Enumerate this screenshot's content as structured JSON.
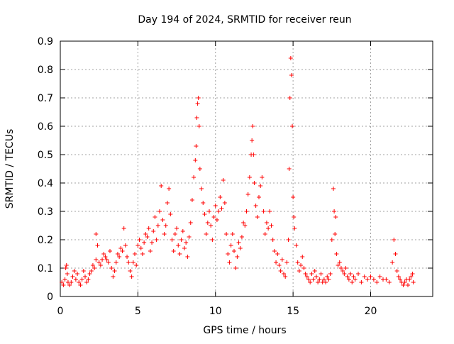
{
  "chart_data": {
    "type": "scatter",
    "title": "Day 194 of 2024, SRMTID for receiver reun",
    "xlabel": "GPS time / hours",
    "ylabel": "SRMTID / TECUs",
    "xlim": [
      0,
      24
    ],
    "ylim": [
      0,
      0.9
    ],
    "x_ticks": [
      0,
      5,
      10,
      15,
      20
    ],
    "x_tick_labels": [
      "0",
      "5",
      "10",
      "15",
      "20"
    ],
    "y_ticks": [
      0,
      0.1,
      0.2,
      0.3,
      0.4,
      0.5,
      0.6,
      0.7,
      0.8,
      0.9
    ],
    "y_tick_labels": [
      "0",
      "0.1",
      "0.2",
      "0.3",
      "0.4",
      "0.5",
      "0.6",
      "0.7",
      "0.8",
      "0.9"
    ],
    "grid": true,
    "marker": "+",
    "color": "#ff0000",
    "series": [
      {
        "name": "SRMTID",
        "points": [
          [
            0.1,
            0.05
          ],
          [
            0.2,
            0.04
          ],
          [
            0.3,
            0.06
          ],
          [
            0.35,
            0.1
          ],
          [
            0.4,
            0.11
          ],
          [
            0.45,
            0.08
          ],
          [
            0.5,
            0.05
          ],
          [
            0.6,
            0.04
          ],
          [
            0.7,
            0.05
          ],
          [
            0.8,
            0.07
          ],
          [
            0.9,
            0.09
          ],
          [
            1.0,
            0.06
          ],
          [
            1.1,
            0.08
          ],
          [
            1.2,
            0.05
          ],
          [
            1.3,
            0.04
          ],
          [
            1.4,
            0.06
          ],
          [
            1.5,
            0.09
          ],
          [
            1.6,
            0.07
          ],
          [
            1.7,
            0.05
          ],
          [
            1.8,
            0.06
          ],
          [
            1.9,
            0.08
          ],
          [
            2.0,
            0.09
          ],
          [
            2.1,
            0.11
          ],
          [
            2.2,
            0.1
          ],
          [
            2.3,
            0.13
          ],
          [
            2.3,
            0.22
          ],
          [
            2.4,
            0.18
          ],
          [
            2.5,
            0.12
          ],
          [
            2.6,
            0.11
          ],
          [
            2.7,
            0.13
          ],
          [
            2.8,
            0.15
          ],
          [
            2.9,
            0.14
          ],
          [
            3.0,
            0.13
          ],
          [
            3.1,
            0.12
          ],
          [
            3.2,
            0.16
          ],
          [
            3.3,
            0.1
          ],
          [
            3.4,
            0.07
          ],
          [
            3.5,
            0.09
          ],
          [
            3.6,
            0.12
          ],
          [
            3.7,
            0.15
          ],
          [
            3.8,
            0.14
          ],
          [
            3.9,
            0.17
          ],
          [
            4.0,
            0.16
          ],
          [
            4.1,
            0.24
          ],
          [
            4.2,
            0.18
          ],
          [
            4.3,
            0.14
          ],
          [
            4.4,
            0.12
          ],
          [
            4.5,
            0.09
          ],
          [
            4.6,
            0.07
          ],
          [
            4.7,
            0.12
          ],
          [
            4.8,
            0.15
          ],
          [
            4.9,
            0.11
          ],
          [
            5.0,
            0.18
          ],
          [
            5.1,
            0.2
          ],
          [
            5.2,
            0.17
          ],
          [
            5.3,
            0.15
          ],
          [
            5.4,
            0.19
          ],
          [
            5.5,
            0.22
          ],
          [
            5.6,
            0.21
          ],
          [
            5.7,
            0.24
          ],
          [
            5.8,
            0.16
          ],
          [
            5.9,
            0.19
          ],
          [
            6.0,
            0.23
          ],
          [
            6.1,
            0.28
          ],
          [
            6.2,
            0.2
          ],
          [
            6.3,
            0.25
          ],
          [
            6.4,
            0.3
          ],
          [
            6.5,
            0.39
          ],
          [
            6.6,
            0.27
          ],
          [
            6.7,
            0.22
          ],
          [
            6.8,
            0.25
          ],
          [
            6.9,
            0.33
          ],
          [
            7.0,
            0.38
          ],
          [
            7.1,
            0.29
          ],
          [
            7.2,
            0.2
          ],
          [
            7.3,
            0.16
          ],
          [
            7.4,
            0.22
          ],
          [
            7.5,
            0.24
          ],
          [
            7.6,
            0.18
          ],
          [
            7.7,
            0.15
          ],
          [
            7.8,
            0.2
          ],
          [
            7.9,
            0.23
          ],
          [
            8.0,
            0.17
          ],
          [
            8.1,
            0.19
          ],
          [
            8.2,
            0.14
          ],
          [
            8.3,
            0.21
          ],
          [
            8.4,
            0.26
          ],
          [
            8.5,
            0.34
          ],
          [
            8.6,
            0.42
          ],
          [
            8.7,
            0.48
          ],
          [
            8.75,
            0.53
          ],
          [
            8.8,
            0.63
          ],
          [
            8.85,
            0.68
          ],
          [
            8.9,
            0.7
          ],
          [
            8.95,
            0.6
          ],
          [
            9.0,
            0.45
          ],
          [
            9.1,
            0.38
          ],
          [
            9.2,
            0.33
          ],
          [
            9.3,
            0.29
          ],
          [
            9.4,
            0.22
          ],
          [
            9.5,
            0.26
          ],
          [
            9.6,
            0.3
          ],
          [
            9.7,
            0.25
          ],
          [
            9.8,
            0.2
          ],
          [
            9.9,
            0.28
          ],
          [
            10.0,
            0.32
          ],
          [
            10.1,
            0.27
          ],
          [
            10.2,
            0.3
          ],
          [
            10.3,
            0.35
          ],
          [
            10.4,
            0.31
          ],
          [
            10.5,
            0.41
          ],
          [
            10.6,
            0.33
          ],
          [
            10.7,
            0.22
          ],
          [
            10.8,
            0.15
          ],
          [
            10.9,
            0.12
          ],
          [
            11.0,
            0.18
          ],
          [
            11.1,
            0.22
          ],
          [
            11.2,
            0.16
          ],
          [
            11.3,
            0.1
          ],
          [
            11.4,
            0.14
          ],
          [
            11.5,
            0.19
          ],
          [
            11.6,
            0.17
          ],
          [
            11.7,
            0.21
          ],
          [
            11.8,
            0.26
          ],
          [
            11.9,
            0.25
          ],
          [
            12.0,
            0.3
          ],
          [
            12.1,
            0.36
          ],
          [
            12.2,
            0.42
          ],
          [
            12.3,
            0.5
          ],
          [
            12.35,
            0.55
          ],
          [
            12.4,
            0.6
          ],
          [
            12.45,
            0.5
          ],
          [
            12.5,
            0.4
          ],
          [
            12.6,
            0.32
          ],
          [
            12.7,
            0.28
          ],
          [
            12.8,
            0.35
          ],
          [
            12.9,
            0.39
          ],
          [
            13.0,
            0.42
          ],
          [
            13.1,
            0.3
          ],
          [
            13.2,
            0.22
          ],
          [
            13.3,
            0.26
          ],
          [
            13.4,
            0.24
          ],
          [
            13.5,
            0.3
          ],
          [
            13.6,
            0.25
          ],
          [
            13.7,
            0.2
          ],
          [
            13.8,
            0.16
          ],
          [
            13.9,
            0.12
          ],
          [
            14.0,
            0.15
          ],
          [
            14.1,
            0.11
          ],
          [
            14.2,
            0.09
          ],
          [
            14.3,
            0.13
          ],
          [
            14.4,
            0.08
          ],
          [
            14.5,
            0.07
          ],
          [
            14.6,
            0.12
          ],
          [
            14.7,
            0.2
          ],
          [
            14.75,
            0.45
          ],
          [
            14.8,
            0.7
          ],
          [
            14.85,
            0.84
          ],
          [
            14.9,
            0.78
          ],
          [
            14.95,
            0.6
          ],
          [
            15.0,
            0.35
          ],
          [
            15.05,
            0.28
          ],
          [
            15.1,
            0.24
          ],
          [
            15.2,
            0.18
          ],
          [
            15.3,
            0.12
          ],
          [
            15.4,
            0.09
          ],
          [
            15.5,
            0.11
          ],
          [
            15.6,
            0.14
          ],
          [
            15.7,
            0.1
          ],
          [
            15.8,
            0.08
          ],
          [
            15.9,
            0.07
          ],
          [
            16.0,
            0.06
          ],
          [
            16.1,
            0.05
          ],
          [
            16.2,
            0.08
          ],
          [
            16.3,
            0.06
          ],
          [
            16.4,
            0.09
          ],
          [
            16.5,
            0.07
          ],
          [
            16.6,
            0.05
          ],
          [
            16.7,
            0.06
          ],
          [
            16.8,
            0.08
          ],
          [
            16.9,
            0.05
          ],
          [
            17.0,
            0.06
          ],
          [
            17.1,
            0.05
          ],
          [
            17.2,
            0.07
          ],
          [
            17.3,
            0.06
          ],
          [
            17.4,
            0.08
          ],
          [
            17.5,
            0.2
          ],
          [
            17.6,
            0.38
          ],
          [
            17.65,
            0.3
          ],
          [
            17.7,
            0.22
          ],
          [
            17.75,
            0.28
          ],
          [
            17.8,
            0.15
          ],
          [
            17.9,
            0.11
          ],
          [
            18.0,
            0.12
          ],
          [
            18.1,
            0.1
          ],
          [
            18.2,
            0.09
          ],
          [
            18.3,
            0.08
          ],
          [
            18.4,
            0.1
          ],
          [
            18.5,
            0.07
          ],
          [
            18.6,
            0.06
          ],
          [
            18.7,
            0.08
          ],
          [
            18.8,
            0.05
          ],
          [
            18.9,
            0.07
          ],
          [
            19.0,
            0.06
          ],
          [
            19.2,
            0.08
          ],
          [
            19.4,
            0.05
          ],
          [
            19.6,
            0.07
          ],
          [
            19.8,
            0.06
          ],
          [
            20.0,
            0.07
          ],
          [
            20.2,
            0.06
          ],
          [
            20.4,
            0.05
          ],
          [
            20.6,
            0.07
          ],
          [
            20.8,
            0.06
          ],
          [
            21.0,
            0.06
          ],
          [
            21.2,
            0.05
          ],
          [
            21.4,
            0.12
          ],
          [
            21.5,
            0.2
          ],
          [
            21.6,
            0.15
          ],
          [
            21.7,
            0.09
          ],
          [
            21.8,
            0.07
          ],
          [
            21.9,
            0.06
          ],
          [
            22.0,
            0.05
          ],
          [
            22.1,
            0.04
          ],
          [
            22.2,
            0.05
          ],
          [
            22.3,
            0.06
          ],
          [
            22.4,
            0.04
          ],
          [
            22.5,
            0.06
          ],
          [
            22.6,
            0.07
          ],
          [
            22.7,
            0.08
          ],
          [
            22.75,
            0.05
          ]
        ]
      }
    ]
  }
}
